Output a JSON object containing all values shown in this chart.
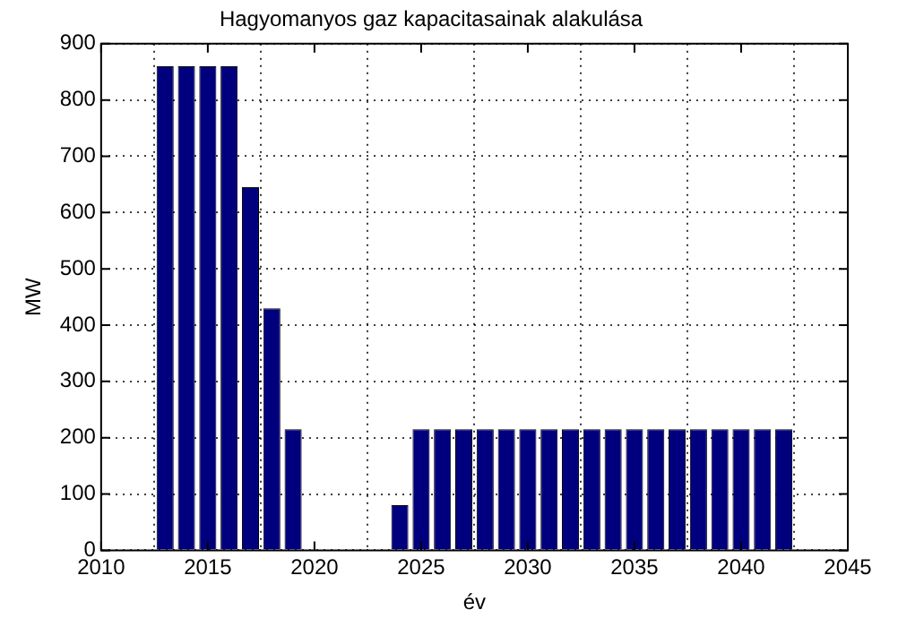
{
  "chart_data": {
    "type": "bar",
    "title": "Hagyomanyos gaz kapacitasainak alakulása",
    "xlabel": "év",
    "ylabel": "MW",
    "x": [
      2013,
      2014,
      2015,
      2016,
      2017,
      2018,
      2019,
      2020,
      2021,
      2022,
      2023,
      2024,
      2025,
      2026,
      2027,
      2028,
      2029,
      2030,
      2031,
      2032,
      2033,
      2034,
      2035,
      2036,
      2037,
      2038,
      2039,
      2040,
      2041,
      2042
    ],
    "values": [
      860,
      860,
      860,
      860,
      645,
      430,
      215,
      0,
      0,
      0,
      0,
      80,
      215,
      215,
      215,
      215,
      215,
      215,
      215,
      215,
      215,
      215,
      215,
      215,
      215,
      215,
      215,
      215,
      215,
      215
    ],
    "color": "#00007f",
    "xlim": [
      2010,
      2045
    ],
    "xticks": [
      2010,
      2015,
      2020,
      2025,
      2030,
      2035,
      2040,
      2045
    ],
    "ylim": [
      0,
      900
    ],
    "yticks": [
      0,
      100,
      200,
      300,
      400,
      500,
      600,
      700,
      800,
      900
    ],
    "grid": true,
    "legend": false
  }
}
